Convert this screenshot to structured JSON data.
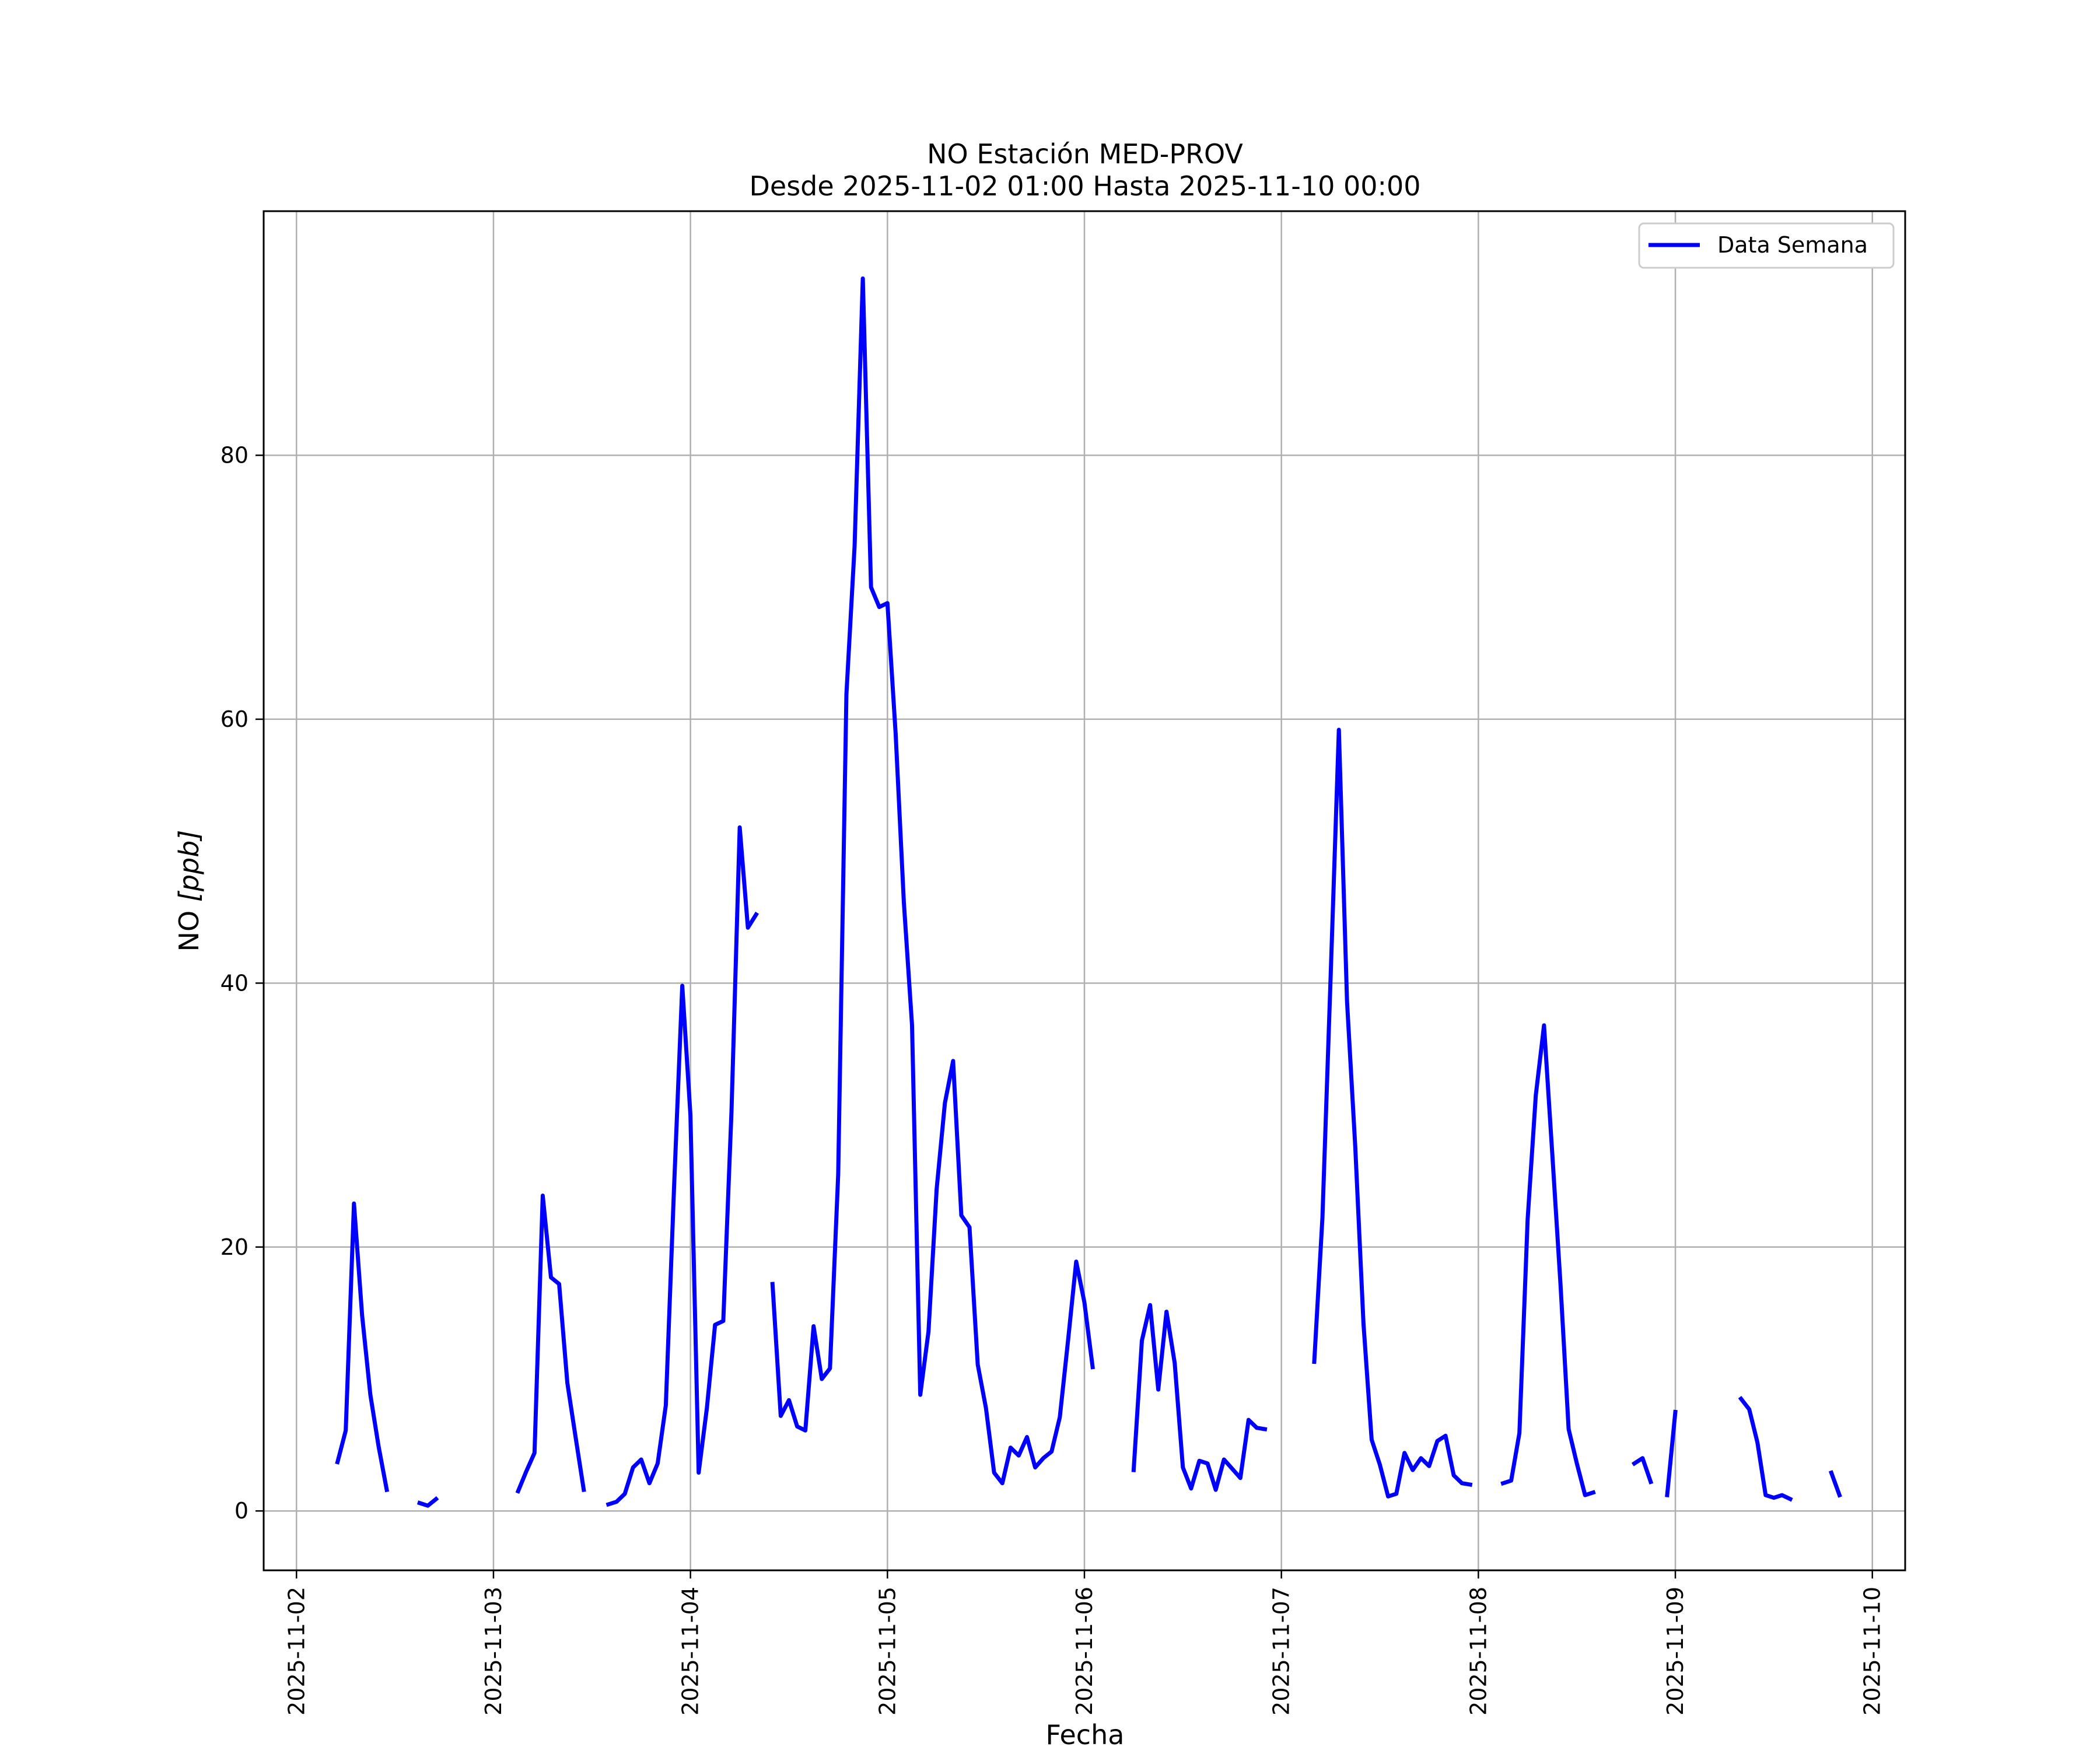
{
  "chart_data": {
    "type": "line",
    "title": "NO Estación MED-PROV",
    "subtitle": "Desde 2025-11-02 01:00 Hasta 2025-11-10 00:00",
    "xlabel": "Fecha",
    "ylabel_main": "NO ",
    "ylabel_unit": "[ppb]",
    "xlim": [
      "2025-11-01 20:00",
      "2025-11-10 04:00"
    ],
    "ylim": [
      -4.5,
      98.5
    ],
    "yticks": [
      0,
      20,
      40,
      60,
      80
    ],
    "xticks": [
      "2025-11-02",
      "2025-11-03",
      "2025-11-04",
      "2025-11-05",
      "2025-11-06",
      "2025-11-07",
      "2025-11-08",
      "2025-11-09",
      "2025-11-10"
    ],
    "grid": true,
    "legend": "top-right",
    "color": "#0000ff",
    "series": [
      {
        "name": "Data Semana",
        "segments": [
          [
            [
              "2025-11-02 05:00",
              3.7
            ],
            [
              "2025-11-02 06:00",
              6.1
            ],
            [
              "2025-11-02 07:00",
              23.3
            ],
            [
              "2025-11-02 08:00",
              14.8
            ],
            [
              "2025-11-02 09:00",
              8.8
            ],
            [
              "2025-11-02 10:00",
              4.9
            ],
            [
              "2025-11-02 11:00",
              1.6
            ]
          ],
          [
            [
              "2025-11-02 15:00",
              0.6
            ],
            [
              "2025-11-02 16:00",
              0.4
            ],
            [
              "2025-11-02 17:00",
              0.9
            ]
          ],
          [
            [
              "2025-11-03 03:00",
              1.5
            ],
            [
              "2025-11-03 04:00",
              3.0
            ],
            [
              "2025-11-03 05:00",
              4.4
            ],
            [
              "2025-11-03 06:00",
              23.9
            ],
            [
              "2025-11-03 07:00",
              17.7
            ],
            [
              "2025-11-03 08:00",
              17.2
            ],
            [
              "2025-11-03 09:00",
              9.7
            ],
            [
              "2025-11-03 10:00",
              5.6
            ],
            [
              "2025-11-03 11:00",
              1.6
            ]
          ],
          [
            [
              "2025-11-03 14:00",
              0.5
            ],
            [
              "2025-11-03 15:00",
              0.7
            ],
            [
              "2025-11-03 16:00",
              1.3
            ],
            [
              "2025-11-03 17:00",
              3.3
            ],
            [
              "2025-11-03 18:00",
              3.9
            ],
            [
              "2025-11-03 19:00",
              2.1
            ],
            [
              "2025-11-03 20:00",
              3.6
            ],
            [
              "2025-11-03 21:00",
              8.0
            ],
            [
              "2025-11-03 22:00",
              24.5
            ],
            [
              "2025-11-03 23:00",
              39.8
            ],
            [
              "2025-11-04 00:00",
              30.0
            ],
            [
              "2025-11-04 01:00",
              2.9
            ],
            [
              "2025-11-04 02:00",
              7.8
            ],
            [
              "2025-11-04 03:00",
              14.1
            ],
            [
              "2025-11-04 04:00",
              14.4
            ],
            [
              "2025-11-04 05:00",
              30.3
            ],
            [
              "2025-11-04 06:00",
              51.8
            ],
            [
              "2025-11-04 07:00",
              44.2
            ],
            [
              "2025-11-04 08:00",
              45.2
            ]
          ],
          [
            [
              "2025-11-04 10:00",
              17.2
            ],
            [
              "2025-11-04 11:00",
              7.2
            ],
            [
              "2025-11-04 12:00",
              8.4
            ],
            [
              "2025-11-04 13:00",
              6.4
            ],
            [
              "2025-11-04 14:00",
              6.1
            ],
            [
              "2025-11-04 15:00",
              14.0
            ],
            [
              "2025-11-04 16:00",
              10.0
            ],
            [
              "2025-11-04 17:00",
              10.8
            ],
            [
              "2025-11-04 18:00",
              25.5
            ],
            [
              "2025-11-04 19:00",
              61.9
            ],
            [
              "2025-11-04 20:00",
              73.1
            ],
            [
              "2025-11-04 21:00",
              93.4
            ],
            [
              "2025-11-04 22:00",
              70.0
            ],
            [
              "2025-11-04 23:00",
              68.5
            ],
            [
              "2025-11-05 00:00",
              68.8
            ],
            [
              "2025-11-05 01:00",
              58.9
            ],
            [
              "2025-11-05 02:00",
              46.1
            ],
            [
              "2025-11-05 03:00",
              36.8
            ],
            [
              "2025-11-05 04:00",
              8.8
            ],
            [
              "2025-11-05 05:00",
              13.6
            ],
            [
              "2025-11-05 06:00",
              24.4
            ],
            [
              "2025-11-05 07:00",
              30.9
            ],
            [
              "2025-11-05 08:00",
              34.1
            ],
            [
              "2025-11-05 09:00",
              22.4
            ],
            [
              "2025-11-05 10:00",
              21.5
            ],
            [
              "2025-11-05 11:00",
              11.1
            ],
            [
              "2025-11-05 12:00",
              7.8
            ],
            [
              "2025-11-05 13:00",
              2.9
            ],
            [
              "2025-11-05 14:00",
              2.1
            ],
            [
              "2025-11-05 15:00",
              4.8
            ],
            [
              "2025-11-05 16:00",
              4.2
            ],
            [
              "2025-11-05 17:00",
              5.6
            ],
            [
              "2025-11-05 18:00",
              3.3
            ],
            [
              "2025-11-05 19:00",
              4.0
            ],
            [
              "2025-11-05 20:00",
              4.5
            ],
            [
              "2025-11-05 21:00",
              7.1
            ],
            [
              "2025-11-05 22:00",
              12.9
            ],
            [
              "2025-11-05 23:00",
              18.9
            ],
            [
              "2025-11-06 00:00",
              15.8
            ],
            [
              "2025-11-06 01:00",
              10.9
            ]
          ],
          [
            [
              "2025-11-06 06:00",
              3.1
            ],
            [
              "2025-11-06 07:00",
              12.9
            ],
            [
              "2025-11-06 08:00",
              15.6
            ],
            [
              "2025-11-06 09:00",
              9.2
            ],
            [
              "2025-11-06 10:00",
              15.1
            ],
            [
              "2025-11-06 11:00",
              11.2
            ],
            [
              "2025-11-06 12:00",
              3.3
            ],
            [
              "2025-11-06 13:00",
              1.7
            ],
            [
              "2025-11-06 14:00",
              3.8
            ],
            [
              "2025-11-06 15:00",
              3.6
            ],
            [
              "2025-11-06 16:00",
              1.6
            ],
            [
              "2025-11-06 17:00",
              3.9
            ],
            [
              "2025-11-06 18:00",
              3.2
            ],
            [
              "2025-11-06 19:00",
              2.5
            ],
            [
              "2025-11-06 20:00",
              6.9
            ],
            [
              "2025-11-06 21:00",
              6.3
            ],
            [
              "2025-11-06 22:00",
              6.2
            ]
          ],
          [
            [
              "2025-11-07 04:00",
              11.3
            ],
            [
              "2025-11-07 05:00",
              22.2
            ],
            [
              "2025-11-07 06:00",
              40.5
            ],
            [
              "2025-11-07 07:00",
              59.2
            ],
            [
              "2025-11-07 08:00",
              38.6
            ],
            [
              "2025-11-07 09:00",
              27.6
            ],
            [
              "2025-11-07 10:00",
              14.2
            ],
            [
              "2025-11-07 11:00",
              5.4
            ],
            [
              "2025-11-07 12:00",
              3.5
            ],
            [
              "2025-11-07 13:00",
              1.1
            ],
            [
              "2025-11-07 14:00",
              1.3
            ],
            [
              "2025-11-07 15:00",
              4.4
            ],
            [
              "2025-11-07 16:00",
              3.1
            ],
            [
              "2025-11-07 17:00",
              4.0
            ],
            [
              "2025-11-07 18:00",
              3.4
            ],
            [
              "2025-11-07 19:00",
              5.3
            ],
            [
              "2025-11-07 20:00",
              5.7
            ],
            [
              "2025-11-07 21:00",
              2.7
            ],
            [
              "2025-11-07 22:00",
              2.1
            ],
            [
              "2025-11-07 23:00",
              2.0
            ]
          ],
          [
            [
              "2025-11-08 03:00",
              2.1
            ],
            [
              "2025-11-08 04:00",
              2.3
            ],
            [
              "2025-11-08 05:00",
              5.9
            ],
            [
              "2025-11-08 06:00",
              22.1
            ],
            [
              "2025-11-08 07:00",
              31.5
            ],
            [
              "2025-11-08 08:00",
              36.8
            ],
            [
              "2025-11-08 09:00",
              27.1
            ],
            [
              "2025-11-08 10:00",
              17.2
            ],
            [
              "2025-11-08 11:00",
              6.2
            ],
            [
              "2025-11-08 12:00",
              3.6
            ],
            [
              "2025-11-08 13:00",
              1.2
            ],
            [
              "2025-11-08 14:00",
              1.4
            ]
          ],
          [
            [
              "2025-11-08 19:00",
              3.6
            ],
            [
              "2025-11-08 20:00",
              4.0
            ],
            [
              "2025-11-08 21:00",
              2.2
            ]
          ],
          [
            [
              "2025-11-08 23:00",
              1.2
            ],
            [
              "2025-11-09 00:00",
              7.5
            ]
          ],
          [
            [
              "2025-11-09 08:00",
              8.5
            ],
            [
              "2025-11-09 09:00",
              7.7
            ],
            [
              "2025-11-09 10:00",
              5.2
            ],
            [
              "2025-11-09 11:00",
              1.2
            ],
            [
              "2025-11-09 12:00",
              1.0
            ],
            [
              "2025-11-09 13:00",
              1.2
            ],
            [
              "2025-11-09 14:00",
              0.9
            ]
          ],
          [
            [
              "2025-11-09 19:00",
              2.9
            ],
            [
              "2025-11-09 20:00",
              1.2
            ]
          ]
        ]
      }
    ]
  }
}
